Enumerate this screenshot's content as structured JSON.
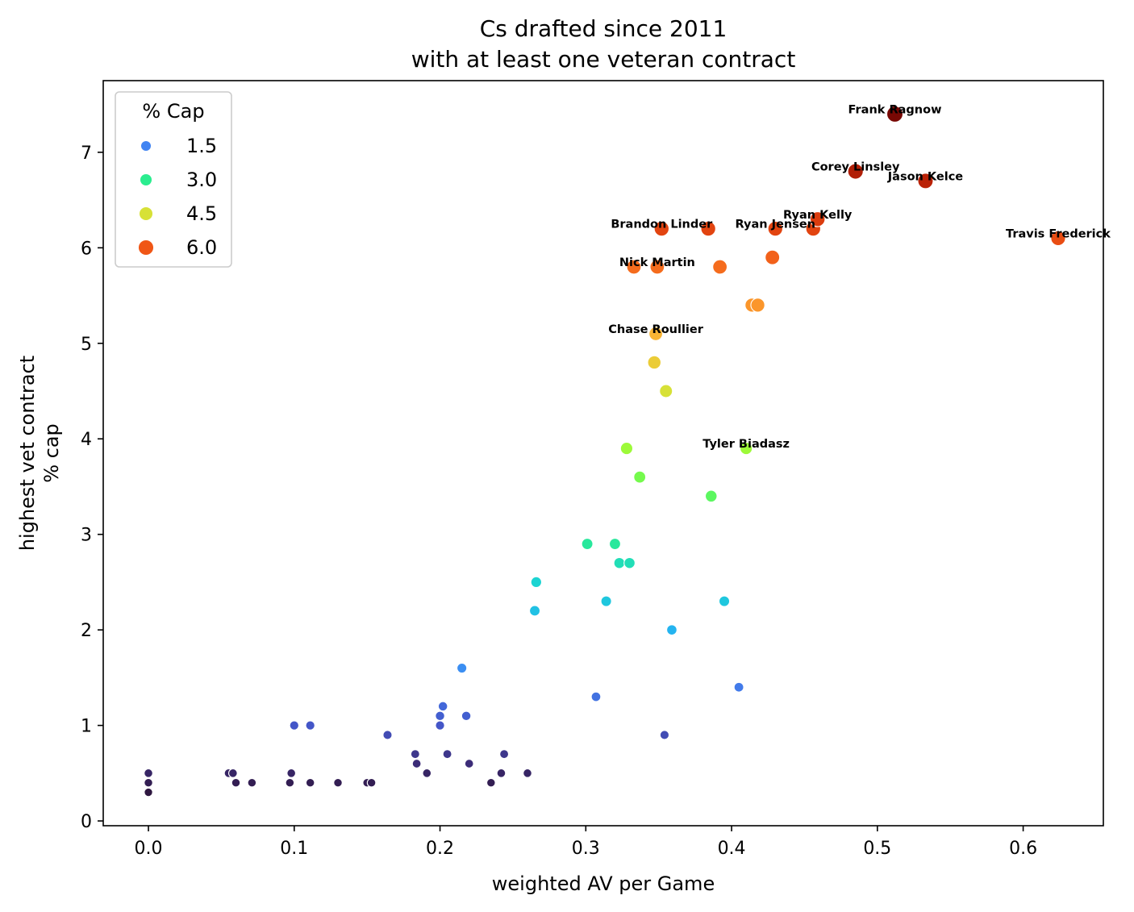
{
  "chart_data": {
    "type": "scatter",
    "title_lines": [
      "Cs drafted since 2011",
      "with at least one veteran contract"
    ],
    "xlabel": "weighted AV per Game",
    "ylabel_lines": [
      "highest vet contract",
      "% cap"
    ],
    "xlim": [
      -0.031,
      0.655
    ],
    "ylim": [
      -0.05,
      7.75
    ],
    "xticks": [
      0.0,
      0.1,
      0.2,
      0.3,
      0.4,
      0.5,
      0.6
    ],
    "xtick_labels": [
      "0.0",
      "0.1",
      "0.2",
      "0.3",
      "0.4",
      "0.5",
      "0.6"
    ],
    "yticks": [
      0,
      1,
      2,
      3,
      4,
      5,
      6,
      7
    ],
    "ytick_labels": [
      "0",
      "1",
      "2",
      "3",
      "4",
      "5",
      "6",
      "7"
    ],
    "legend": {
      "title": "% Cap",
      "position": "upper-left",
      "entries": [
        {
          "label": "1.5",
          "value": 1.5
        },
        {
          "label": "3.0",
          "value": 3.0
        },
        {
          "label": "4.5",
          "value": 4.5
        },
        {
          "label": "6.0",
          "value": 6.0
        }
      ]
    },
    "points": [
      {
        "x": 0.0,
        "y": 0.3
      },
      {
        "x": 0.0,
        "y": 0.4
      },
      {
        "x": 0.0,
        "y": 0.5
      },
      {
        "x": 0.055,
        "y": 0.5
      },
      {
        "x": 0.058,
        "y": 0.5
      },
      {
        "x": 0.06,
        "y": 0.4
      },
      {
        "x": 0.071,
        "y": 0.4
      },
      {
        "x": 0.097,
        "y": 0.4
      },
      {
        "x": 0.098,
        "y": 0.5
      },
      {
        "x": 0.1,
        "y": 1.0
      },
      {
        "x": 0.111,
        "y": 0.4
      },
      {
        "x": 0.111,
        "y": 1.0
      },
      {
        "x": 0.13,
        "y": 0.4
      },
      {
        "x": 0.15,
        "y": 0.4
      },
      {
        "x": 0.153,
        "y": 0.4
      },
      {
        "x": 0.164,
        "y": 0.9
      },
      {
        "x": 0.183,
        "y": 0.7
      },
      {
        "x": 0.184,
        "y": 0.6
      },
      {
        "x": 0.191,
        "y": 0.5
      },
      {
        "x": 0.2,
        "y": 1.0
      },
      {
        "x": 0.2,
        "y": 1.1
      },
      {
        "x": 0.202,
        "y": 1.2
      },
      {
        "x": 0.205,
        "y": 0.7
      },
      {
        "x": 0.215,
        "y": 1.6
      },
      {
        "x": 0.218,
        "y": 1.1
      },
      {
        "x": 0.22,
        "y": 0.6
      },
      {
        "x": 0.235,
        "y": 0.4
      },
      {
        "x": 0.242,
        "y": 0.5
      },
      {
        "x": 0.244,
        "y": 0.7
      },
      {
        "x": 0.26,
        "y": 0.5
      },
      {
        "x": 0.265,
        "y": 2.2
      },
      {
        "x": 0.266,
        "y": 2.5
      },
      {
        "x": 0.301,
        "y": 2.9
      },
      {
        "x": 0.307,
        "y": 1.3
      },
      {
        "x": 0.314,
        "y": 2.3
      },
      {
        "x": 0.32,
        "y": 2.9
      },
      {
        "x": 0.323,
        "y": 2.7
      },
      {
        "x": 0.328,
        "y": 3.9
      },
      {
        "x": 0.33,
        "y": 2.7
      },
      {
        "x": 0.333,
        "y": 5.8
      },
      {
        "x": 0.337,
        "y": 3.6
      },
      {
        "x": 0.347,
        "y": 4.8
      },
      {
        "x": 0.348,
        "y": 5.1,
        "name": "Chase Roullier"
      },
      {
        "x": 0.349,
        "y": 5.8,
        "name": "Nick Martin"
      },
      {
        "x": 0.352,
        "y": 6.2,
        "name": "Brandon Linder"
      },
      {
        "x": 0.354,
        "y": 0.9
      },
      {
        "x": 0.355,
        "y": 4.5
      },
      {
        "x": 0.359,
        "y": 2.0
      },
      {
        "x": 0.384,
        "y": 6.2
      },
      {
        "x": 0.386,
        "y": 3.4
      },
      {
        "x": 0.392,
        "y": 5.8
      },
      {
        "x": 0.395,
        "y": 2.3
      },
      {
        "x": 0.405,
        "y": 1.4
      },
      {
        "x": 0.41,
        "y": 3.9,
        "name": "Tyler Biadasz"
      },
      {
        "x": 0.414,
        "y": 5.4
      },
      {
        "x": 0.418,
        "y": 5.4
      },
      {
        "x": 0.428,
        "y": 5.9
      },
      {
        "x": 0.43,
        "y": 6.2,
        "name": "Ryan Jensen"
      },
      {
        "x": 0.456,
        "y": 6.2
      },
      {
        "x": 0.459,
        "y": 6.3,
        "name": "Ryan Kelly"
      },
      {
        "x": 0.485,
        "y": 6.8,
        "name": "Corey Linsley"
      },
      {
        "x": 0.512,
        "y": 7.4,
        "name": "Frank Ragnow"
      },
      {
        "x": 0.533,
        "y": 6.7,
        "name": "Jason Kelce"
      },
      {
        "x": 0.624,
        "y": 6.1,
        "name": "Travis Frederick"
      }
    ]
  }
}
